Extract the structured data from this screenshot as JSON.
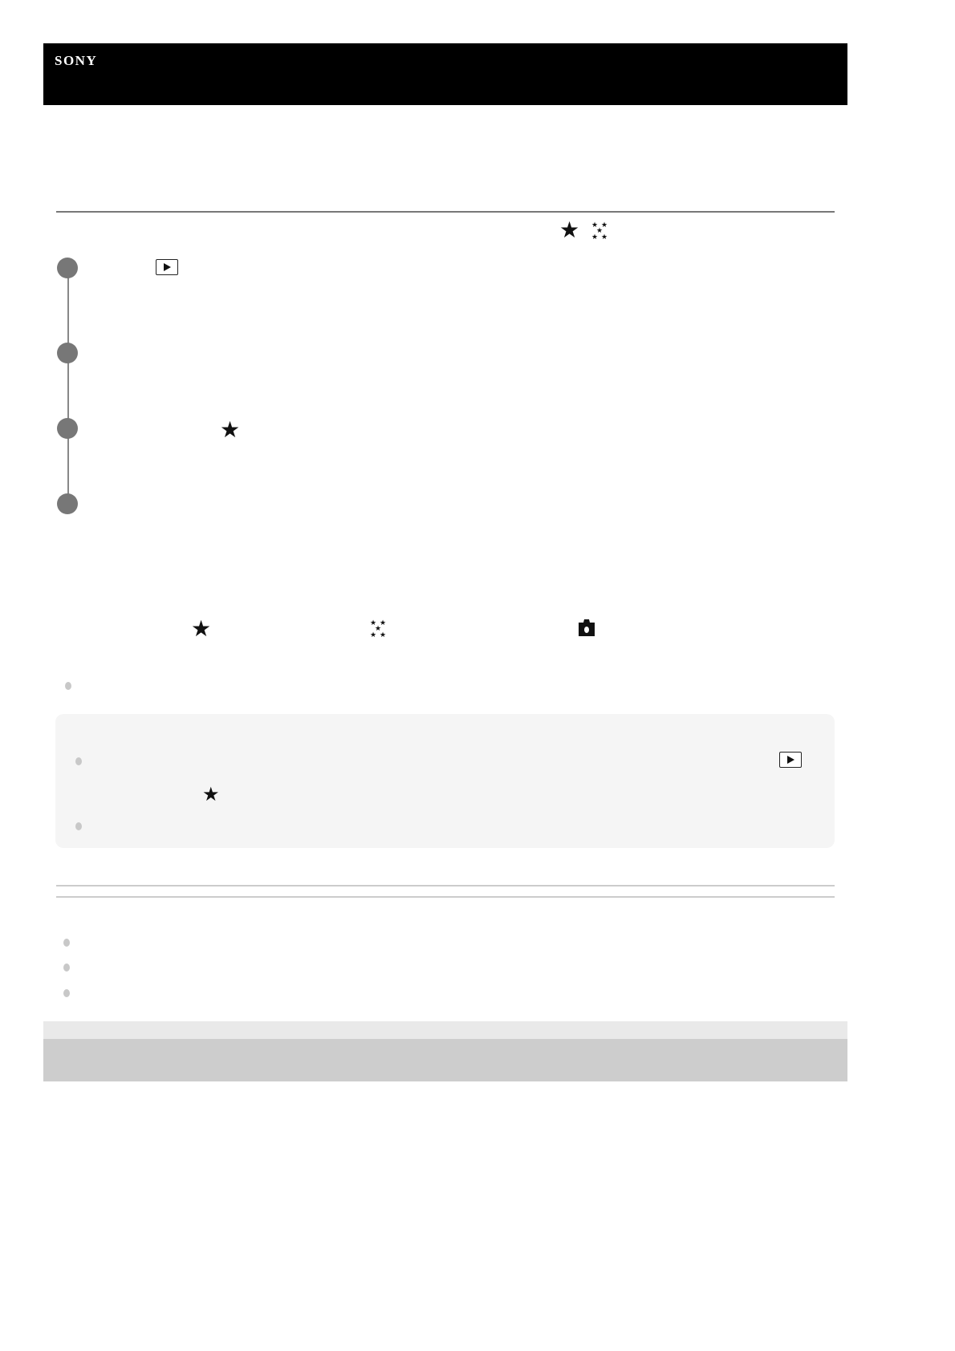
{
  "header": {
    "logo": "SONY",
    "background": "#000000"
  },
  "colors": {
    "step_marker": "#777777",
    "note_background": "#f5f5f5",
    "footer_bar": "#cdcdcd"
  },
  "icons": [
    "star-icon",
    "multi-star-icon",
    "playback-icon",
    "camera-icon"
  ]
}
